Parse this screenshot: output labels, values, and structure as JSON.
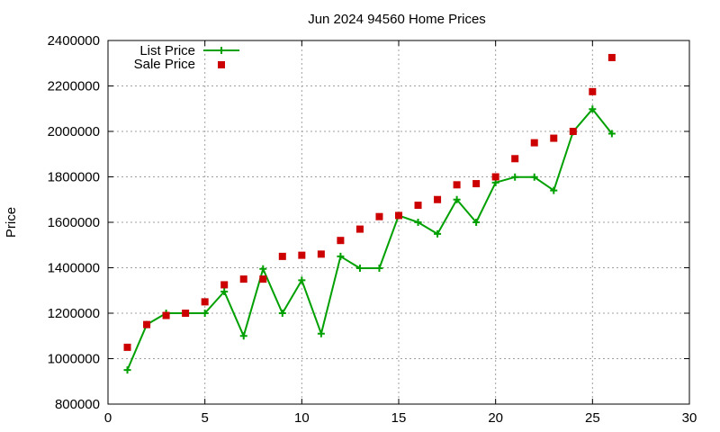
{
  "chart_data": {
    "type": "line",
    "title": "Jun 2024 94560 Home Prices",
    "xlabel": "",
    "ylabel": "Price",
    "xlim": [
      0,
      30
    ],
    "ylim": [
      800000,
      2400000
    ],
    "x_ticks": [
      0,
      5,
      10,
      15,
      20,
      25,
      30
    ],
    "y_ticks": [
      800000,
      1000000,
      1200000,
      1400000,
      1600000,
      1800000,
      2000000,
      2200000,
      2400000
    ],
    "x_tick_labels": [
      "0",
      "5",
      "10",
      "15",
      "20",
      "25",
      "30"
    ],
    "y_tick_labels": [
      "800000",
      "1000000",
      "1200000",
      "1400000",
      "1600000",
      "1800000",
      "2000000",
      "2200000",
      "2400000"
    ],
    "grid": true,
    "legend_position": "top-left",
    "series": [
      {
        "name": "List Price",
        "kind": "line",
        "marker": "plus",
        "color": "#00a000",
        "x": [
          1,
          2,
          3,
          4,
          5,
          6,
          7,
          8,
          9,
          10,
          11,
          12,
          13,
          14,
          15,
          16,
          17,
          18,
          19,
          20,
          21,
          22,
          23,
          24,
          25,
          26
        ],
        "values": [
          950000,
          1150000,
          1200000,
          1200000,
          1200000,
          1295000,
          1100000,
          1395000,
          1200000,
          1345000,
          1110000,
          1450000,
          1398000,
          1398000,
          1630000,
          1600000,
          1549000,
          1700000,
          1600000,
          1775000,
          1799000,
          1799000,
          1740000,
          1999000,
          2098000,
          1990000
        ]
      },
      {
        "name": "Sale Price",
        "kind": "scatter",
        "marker": "square",
        "color": "#cc0000",
        "x": [
          1,
          2,
          3,
          4,
          5,
          6,
          7,
          8,
          9,
          10,
          11,
          12,
          13,
          14,
          15,
          16,
          17,
          18,
          19,
          20,
          21,
          22,
          23,
          24,
          25,
          26
        ],
        "values": [
          1050000,
          1150000,
          1190000,
          1200000,
          1250000,
          1325000,
          1350000,
          1350000,
          1450000,
          1455000,
          1460000,
          1520000,
          1570000,
          1625000,
          1630000,
          1675000,
          1700000,
          1765000,
          1770000,
          1800000,
          1880000,
          1950000,
          1970000,
          2000000,
          2175000,
          2325000
        ]
      }
    ]
  }
}
